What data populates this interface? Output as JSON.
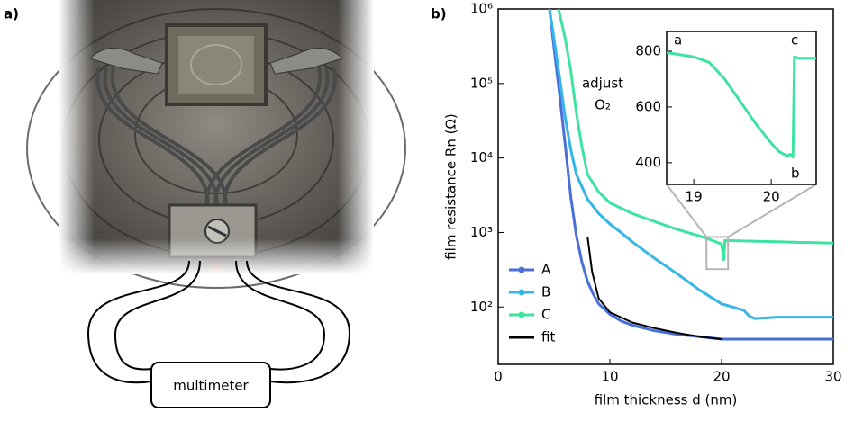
{
  "panel_labels": [
    "a)",
    "b)"
  ],
  "diagram": {
    "instrument": "multimeter"
  },
  "chart_data": [
    {
      "type": "line",
      "log_y": true,
      "xlabel": "film thickness d (nm)",
      "ylabel": "film resistance Rn (Ω)",
      "xlim": [
        0,
        30
      ],
      "ylim": [
        17,
        1000000
      ],
      "xticks": [
        0,
        10,
        20,
        30
      ],
      "yticks": [
        {
          "value": 100,
          "label": "10²"
        },
        {
          "value": 1000,
          "label": "10³"
        },
        {
          "value": 10000,
          "label": "10⁴"
        },
        {
          "value": 100000,
          "label": "10⁵"
        },
        {
          "value": 1000000,
          "label": "10⁶"
        }
      ],
      "legend": "lower left",
      "annotations": [
        "adjust",
        "O₂"
      ],
      "series": [
        {
          "name": "A",
          "color": "#4a6fd8",
          "x": [
            4.6,
            5,
            5.5,
            6,
            6.5,
            7,
            7.5,
            8,
            8.5,
            9,
            10,
            11,
            12,
            14,
            16,
            18,
            20,
            22,
            25,
            30
          ],
          "values": [
            1000000,
            300000,
            70000,
            15000,
            3000,
            900,
            400,
            220,
            150,
            110,
            80,
            65,
            57,
            48,
            43,
            40,
            37,
            37,
            37,
            37
          ]
        },
        {
          "name": "B",
          "color": "#35b6e6",
          "x": [
            4.6,
            5,
            5.5,
            6,
            6.5,
            7,
            8,
            9,
            10,
            11,
            12,
            14,
            16,
            18,
            20,
            20.5,
            21,
            22,
            22.5,
            23,
            25,
            30
          ],
          "values": [
            1000000,
            400000,
            120000,
            35000,
            13000,
            6000,
            2800,
            1800,
            1300,
            1000,
            750,
            450,
            280,
            170,
            110,
            105,
            100,
            90,
            75,
            70,
            73,
            73
          ]
        },
        {
          "name": "C",
          "color": "#3de3a0",
          "x": [
            5.4,
            6,
            6.5,
            7,
            7.5,
            8,
            9,
            10,
            12,
            14,
            16,
            18,
            19,
            20,
            20.2,
            20.3,
            22,
            25,
            30
          ],
          "values": [
            1000000,
            400000,
            150000,
            40000,
            14000,
            6000,
            3500,
            2500,
            1800,
            1400,
            1100,
            900,
            800,
            700,
            430,
            780,
            770,
            750,
            720
          ]
        },
        {
          "name": "fit",
          "color": "#000000",
          "x": [
            8,
            8.4,
            9,
            10,
            12,
            14,
            16,
            18,
            20
          ],
          "values": [
            880,
            300,
            130,
            85,
            62,
            52,
            45,
            40,
            37
          ]
        }
      ]
    },
    {
      "type": "line",
      "log_y": false,
      "xlim": [
        18.65,
        20.58
      ],
      "ylim": [
        322,
        871
      ],
      "xticks": [
        19,
        20
      ],
      "yticks": [
        400,
        600,
        800
      ],
      "annotations": [
        "a",
        "b",
        "c"
      ],
      "series": [
        {
          "color": "#3de3a0",
          "x": [
            18.65,
            19.0,
            19.2,
            19.4,
            19.6,
            19.8,
            20.0,
            20.1,
            20.2,
            20.25,
            20.28,
            20.3,
            20.35,
            20.58
          ],
          "values": [
            795,
            780,
            760,
            700,
            620,
            540,
            470,
            440,
            425,
            430,
            420,
            780,
            775,
            775
          ]
        }
      ]
    }
  ]
}
